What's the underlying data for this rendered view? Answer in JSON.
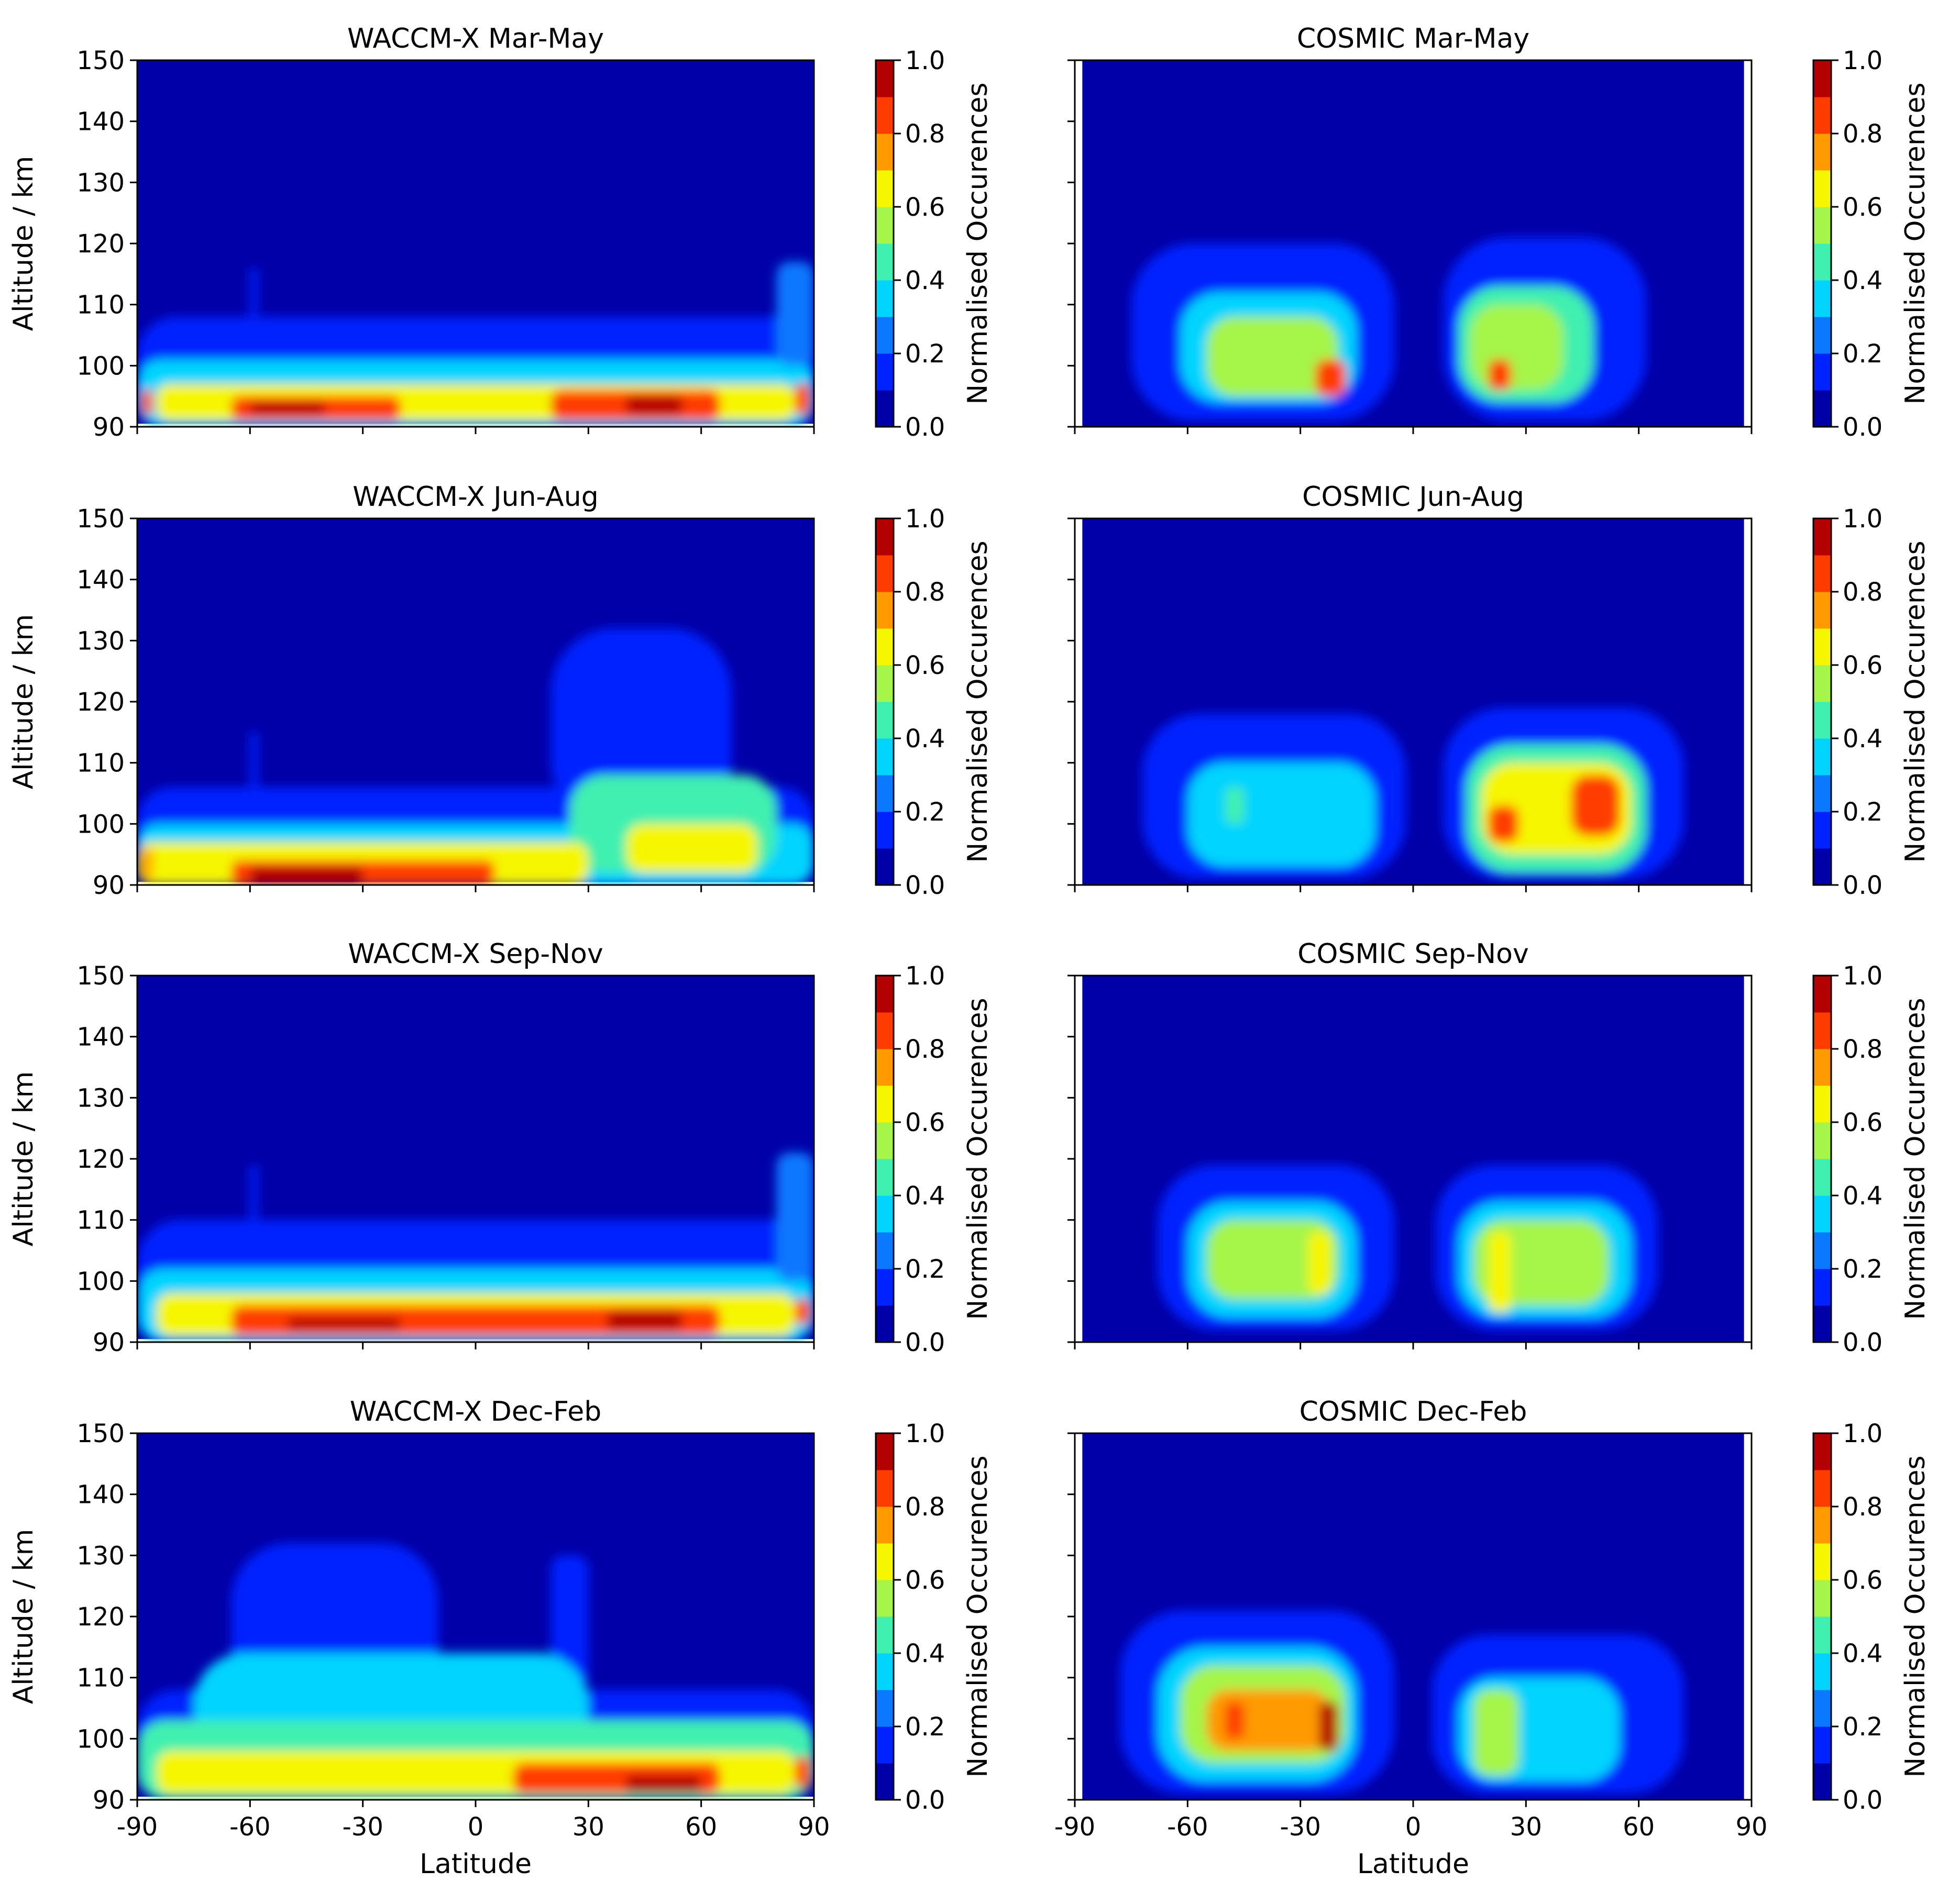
{
  "colors": {
    "background": "#ffffff",
    "axis": "#000000",
    "colormap": [
      "#0000a8",
      "#0022ff",
      "#0a78ff",
      "#00d4ff",
      "#3ff0b0",
      "#a6f54a",
      "#f6f600",
      "#ff9a00",
      "#ff3c00",
      "#b30000"
    ]
  },
  "chart_data": [
    {
      "type": "heatmap",
      "title": "WACCM-X Mar-May",
      "xlabel": "",
      "ylabel": "Altitude / km",
      "xlim": [
        -90,
        90
      ],
      "ylim": [
        90,
        150
      ],
      "xticks": [
        "-90",
        "-60",
        "-30",
        "0",
        "30",
        "60",
        "90"
      ],
      "yticks": [
        "90",
        "100",
        "110",
        "120",
        "130",
        "140",
        "150"
      ],
      "colorbar": {
        "label": "Normalised Occurences",
        "range": [
          0,
          1
        ],
        "ticks": [
          "0.0",
          "0.2",
          "0.4",
          "0.6",
          "0.8",
          "1.0"
        ],
        "levels": 10
      },
      "features": [
        {
          "lat": [
            -90,
            90
          ],
          "alt": [
            90,
            108
          ],
          "value": 0.15
        },
        {
          "lat": [
            -90,
            90
          ],
          "alt": [
            90,
            101
          ],
          "value": 0.35
        },
        {
          "lat": [
            -85,
            85
          ],
          "alt": [
            91,
            97
          ],
          "value": 0.6
        },
        {
          "lat": [
            -65,
            -20
          ],
          "alt": [
            91,
            95
          ],
          "value": 0.85
        },
        {
          "lat": [
            20,
            65
          ],
          "alt": [
            91,
            96
          ],
          "value": 0.85
        },
        {
          "lat": [
            -60,
            -40
          ],
          "alt": [
            92,
            94
          ],
          "value": 0.95
        },
        {
          "lat": [
            40,
            55
          ],
          "alt": [
            92,
            95
          ],
          "value": 0.95
        },
        {
          "lat": [
            -60,
            -58
          ],
          "alt": [
            108,
            116
          ],
          "value": 0.15
        },
        {
          "lat": [
            80,
            90
          ],
          "alt": [
            100,
            117
          ],
          "value": 0.25
        },
        {
          "lat": [
            -89,
            -86
          ],
          "alt": [
            92,
            96
          ],
          "value": 0.85
        },
        {
          "lat": [
            85,
            89
          ],
          "alt": [
            92,
            97
          ],
          "value": 0.85
        }
      ]
    },
    {
      "type": "heatmap",
      "title": "COSMIC Mar-May",
      "xlabel": "",
      "ylabel": "",
      "xlim": [
        -90,
        90
      ],
      "ylim": [
        90,
        150
      ],
      "xticks": [
        "-90",
        "-60",
        "-30",
        "0",
        "30",
        "60",
        "90"
      ],
      "yticks": [
        "90",
        "100",
        "110",
        "120",
        "130",
        "140",
        "150"
      ],
      "colorbar": {
        "label": "Normalised Occurences",
        "range": [
          0,
          1
        ],
        "ticks": [
          "0.0",
          "0.2",
          "0.4",
          "0.6",
          "0.8",
          "1.0"
        ],
        "levels": 10
      },
      "features": [
        {
          "lat": [
            -75,
            -5
          ],
          "alt": [
            91,
            120
          ],
          "value": 0.15
        },
        {
          "lat": [
            8,
            62
          ],
          "alt": [
            91,
            121
          ],
          "value": 0.15
        },
        {
          "lat": [
            -62,
            -15
          ],
          "alt": [
            94,
            112
          ],
          "value": 0.35
        },
        {
          "lat": [
            12,
            48
          ],
          "alt": [
            94,
            113
          ],
          "value": 0.4
        },
        {
          "lat": [
            -55,
            -20
          ],
          "alt": [
            95,
            108
          ],
          "value": 0.55
        },
        {
          "lat": [
            15,
            40
          ],
          "alt": [
            96,
            110
          ],
          "value": 0.55
        },
        {
          "lat": [
            -26,
            -18
          ],
          "alt": [
            95,
            101
          ],
          "value": 0.85
        },
        {
          "lat": [
            20,
            26
          ],
          "alt": [
            96,
            101
          ],
          "value": 0.85
        }
      ]
    },
    {
      "type": "heatmap",
      "title": "WACCM-X Jun-Aug",
      "xlabel": "",
      "ylabel": "Altitude / km",
      "xlim": [
        -90,
        90
      ],
      "ylim": [
        90,
        150
      ],
      "xticks": [
        "-90",
        "-60",
        "-30",
        "0",
        "30",
        "60",
        "90"
      ],
      "yticks": [
        "90",
        "100",
        "110",
        "120",
        "130",
        "140",
        "150"
      ],
      "colorbar": {
        "label": "Normalised Occurences",
        "range": [
          0,
          1
        ],
        "ticks": [
          "0.0",
          "0.2",
          "0.4",
          "0.6",
          "0.8",
          "1.0"
        ],
        "levels": 10
      },
      "features": [
        {
          "lat": [
            -90,
            90
          ],
          "alt": [
            90,
            106
          ],
          "value": 0.15
        },
        {
          "lat": [
            20,
            68
          ],
          "alt": [
            100,
            132
          ],
          "value": 0.15
        },
        {
          "lat": [
            -90,
            90
          ],
          "alt": [
            90,
            100
          ],
          "value": 0.35
        },
        {
          "lat": [
            25,
            80
          ],
          "alt": [
            92,
            108
          ],
          "value": 0.4
        },
        {
          "lat": [
            40,
            75
          ],
          "alt": [
            92,
            100
          ],
          "value": 0.6
        },
        {
          "lat": [
            -90,
            30
          ],
          "alt": [
            90,
            97
          ],
          "value": 0.6
        },
        {
          "lat": [
            -65,
            5
          ],
          "alt": [
            90,
            94
          ],
          "value": 0.85
        },
        {
          "lat": [
            -60,
            -30
          ],
          "alt": [
            90,
            93
          ],
          "value": 0.95
        },
        {
          "lat": [
            -60,
            -58
          ],
          "alt": [
            104,
            115
          ],
          "value": 0.15
        },
        {
          "lat": [
            -89,
            -86
          ],
          "alt": [
            91,
            96
          ],
          "value": 0.75
        }
      ]
    },
    {
      "type": "heatmap",
      "title": "COSMIC Jun-Aug",
      "xlabel": "",
      "ylabel": "",
      "xlim": [
        -90,
        90
      ],
      "ylim": [
        90,
        150
      ],
      "xticks": [
        "-90",
        "-60",
        "-30",
        "0",
        "30",
        "60",
        "90"
      ],
      "yticks": [
        "90",
        "100",
        "110",
        "120",
        "130",
        "140",
        "150"
      ],
      "colorbar": {
        "label": "Normalised Occurences",
        "range": [
          0,
          1
        ],
        "ticks": [
          "0.0",
          "0.2",
          "0.4",
          "0.6",
          "0.8",
          "1.0"
        ],
        "levels": 10
      },
      "features": [
        {
          "lat": [
            -72,
            -2
          ],
          "alt": [
            91,
            118
          ],
          "value": 0.15
        },
        {
          "lat": [
            8,
            72
          ],
          "alt": [
            91,
            119
          ],
          "value": 0.15
        },
        {
          "lat": [
            -60,
            -10
          ],
          "alt": [
            93,
            110
          ],
          "value": 0.35
        },
        {
          "lat": [
            14,
            62
          ],
          "alt": [
            92,
            113
          ],
          "value": 0.4
        },
        {
          "lat": [
            18,
            58
          ],
          "alt": [
            95,
            110
          ],
          "value": 0.6
        },
        {
          "lat": [
            20,
            28
          ],
          "alt": [
            97,
            103
          ],
          "value": 0.85
        },
        {
          "lat": [
            42,
            55
          ],
          "alt": [
            98,
            108
          ],
          "value": 0.85
        },
        {
          "lat": [
            -50,
            -45
          ],
          "alt": [
            100,
            106
          ],
          "value": 0.45
        }
      ]
    },
    {
      "type": "heatmap",
      "title": "WACCM-X Sep-Nov",
      "xlabel": "",
      "ylabel": "Altitude / km",
      "xlim": [
        -90,
        90
      ],
      "ylim": [
        90,
        150
      ],
      "xticks": [
        "-90",
        "-60",
        "-30",
        "0",
        "30",
        "60",
        "90"
      ],
      "yticks": [
        "90",
        "100",
        "110",
        "120",
        "130",
        "140",
        "150"
      ],
      "colorbar": {
        "label": "Normalised Occurences",
        "range": [
          0,
          1
        ],
        "ticks": [
          "0.0",
          "0.2",
          "0.4",
          "0.6",
          "0.8",
          "1.0"
        ],
        "levels": 10
      },
      "features": [
        {
          "lat": [
            -90,
            90
          ],
          "alt": [
            90,
            110
          ],
          "value": 0.15
        },
        {
          "lat": [
            -90,
            90
          ],
          "alt": [
            90,
            102
          ],
          "value": 0.35
        },
        {
          "lat": [
            -85,
            85
          ],
          "alt": [
            91,
            98
          ],
          "value": 0.6
        },
        {
          "lat": [
            -65,
            65
          ],
          "alt": [
            91,
            96
          ],
          "value": 0.85
        },
        {
          "lat": [
            -50,
            -20
          ],
          "alt": [
            92,
            94
          ],
          "value": 0.9
        },
        {
          "lat": [
            35,
            55
          ],
          "alt": [
            92,
            95
          ],
          "value": 0.95
        },
        {
          "lat": [
            -60,
            -58
          ],
          "alt": [
            109,
            119
          ],
          "value": 0.15
        },
        {
          "lat": [
            80,
            90
          ],
          "alt": [
            100,
            121
          ],
          "value": 0.25
        },
        {
          "lat": [
            85,
            89
          ],
          "alt": [
            93,
            97
          ],
          "value": 0.85
        }
      ]
    },
    {
      "type": "heatmap",
      "title": "COSMIC Sep-Nov",
      "xlabel": "",
      "ylabel": "",
      "xlim": [
        -90,
        90
      ],
      "ylim": [
        90,
        150
      ],
      "xticks": [
        "-90",
        "-60",
        "-30",
        "0",
        "30",
        "60",
        "90"
      ],
      "yticks": [
        "90",
        "100",
        "110",
        "120",
        "130",
        "140",
        "150"
      ],
      "colorbar": {
        "label": "Normalised Occurences",
        "range": [
          0,
          1
        ],
        "ticks": [
          "0.0",
          "0.2",
          "0.4",
          "0.6",
          "0.8",
          "1.0"
        ],
        "levels": 10
      },
      "features": [
        {
          "lat": [
            -68,
            -5
          ],
          "alt": [
            92,
            119
          ],
          "value": 0.15
        },
        {
          "lat": [
            6,
            65
          ],
          "alt": [
            92,
            119
          ],
          "value": 0.15
        },
        {
          "lat": [
            -60,
            -15
          ],
          "alt": [
            94,
            113
          ],
          "value": 0.35
        },
        {
          "lat": [
            12,
            58
          ],
          "alt": [
            94,
            113
          ],
          "value": 0.35
        },
        {
          "lat": [
            -55,
            -20
          ],
          "alt": [
            97,
            110
          ],
          "value": 0.5
        },
        {
          "lat": [
            16,
            52
          ],
          "alt": [
            96,
            110
          ],
          "value": 0.5
        },
        {
          "lat": [
            -28,
            -22
          ],
          "alt": [
            98,
            108
          ],
          "value": 0.65
        },
        {
          "lat": [
            20,
            26
          ],
          "alt": [
            95,
            108
          ],
          "value": 0.65
        }
      ]
    },
    {
      "type": "heatmap",
      "title": "WACCM-X Dec-Feb",
      "xlabel": "Latitude",
      "ylabel": "Altitude / km",
      "xlim": [
        -90,
        90
      ],
      "ylim": [
        90,
        150
      ],
      "xticks": [
        "-90",
        "-60",
        "-30",
        "0",
        "30",
        "60",
        "90"
      ],
      "yticks": [
        "90",
        "100",
        "110",
        "120",
        "130",
        "140",
        "150"
      ],
      "colorbar": {
        "label": "Normalised Occurences",
        "range": [
          0,
          1
        ],
        "ticks": [
          "0.0",
          "0.2",
          "0.4",
          "0.6",
          "0.8",
          "1.0"
        ],
        "levels": 10
      },
      "features": [
        {
          "lat": [
            -90,
            90
          ],
          "alt": [
            90,
            108
          ],
          "value": 0.15
        },
        {
          "lat": [
            -65,
            -10
          ],
          "alt": [
            105,
            132
          ],
          "value": 0.15
        },
        {
          "lat": [
            20,
            30
          ],
          "alt": [
            108,
            130
          ],
          "value": 0.15
        },
        {
          "lat": [
            -75,
            30
          ],
          "alt": [
            90,
            114
          ],
          "value": 0.3
        },
        {
          "lat": [
            -90,
            90
          ],
          "alt": [
            90,
            103
          ],
          "value": 0.45
        },
        {
          "lat": [
            -85,
            85
          ],
          "alt": [
            91,
            98
          ],
          "value": 0.6
        },
        {
          "lat": [
            10,
            65
          ],
          "alt": [
            91,
            96
          ],
          "value": 0.8
        },
        {
          "lat": [
            40,
            60
          ],
          "alt": [
            91,
            94
          ],
          "value": 0.95
        },
        {
          "lat": [
            85,
            89
          ],
          "alt": [
            92,
            97
          ],
          "value": 0.85
        }
      ]
    },
    {
      "type": "heatmap",
      "title": "COSMIC Dec-Feb",
      "xlabel": "Latitude",
      "ylabel": "",
      "xlim": [
        -90,
        90
      ],
      "ylim": [
        90,
        150
      ],
      "xticks": [
        "-90",
        "-60",
        "-30",
        "0",
        "30",
        "60",
        "90"
      ],
      "yticks": [
        "90",
        "100",
        "110",
        "120",
        "130",
        "140",
        "150"
      ],
      "colorbar": {
        "label": "Normalised Occurences",
        "range": [
          0,
          1
        ],
        "ticks": [
          "0.0",
          "0.2",
          "0.4",
          "0.6",
          "0.8",
          "1.0"
        ],
        "levels": 10
      },
      "features": [
        {
          "lat": [
            -78,
            -5
          ],
          "alt": [
            91,
            121
          ],
          "value": 0.15
        },
        {
          "lat": [
            5,
            72
          ],
          "alt": [
            91,
            117
          ],
          "value": 0.15
        },
        {
          "lat": [
            -68,
            -15
          ],
          "alt": [
            93,
            115
          ],
          "value": 0.35
        },
        {
          "lat": [
            12,
            55
          ],
          "alt": [
            93,
            110
          ],
          "value": 0.35
        },
        {
          "lat": [
            -62,
            -18
          ],
          "alt": [
            96,
            112
          ],
          "value": 0.55
        },
        {
          "lat": [
            16,
            28
          ],
          "alt": [
            94,
            108
          ],
          "value": 0.55
        },
        {
          "lat": [
            -55,
            -22
          ],
          "alt": [
            98,
            108
          ],
          "value": 0.75
        },
        {
          "lat": [
            -50,
            -45
          ],
          "alt": [
            100,
            106
          ],
          "value": 0.85
        },
        {
          "lat": [
            -25,
            -20
          ],
          "alt": [
            98,
            106
          ],
          "value": 0.9
        }
      ]
    }
  ]
}
